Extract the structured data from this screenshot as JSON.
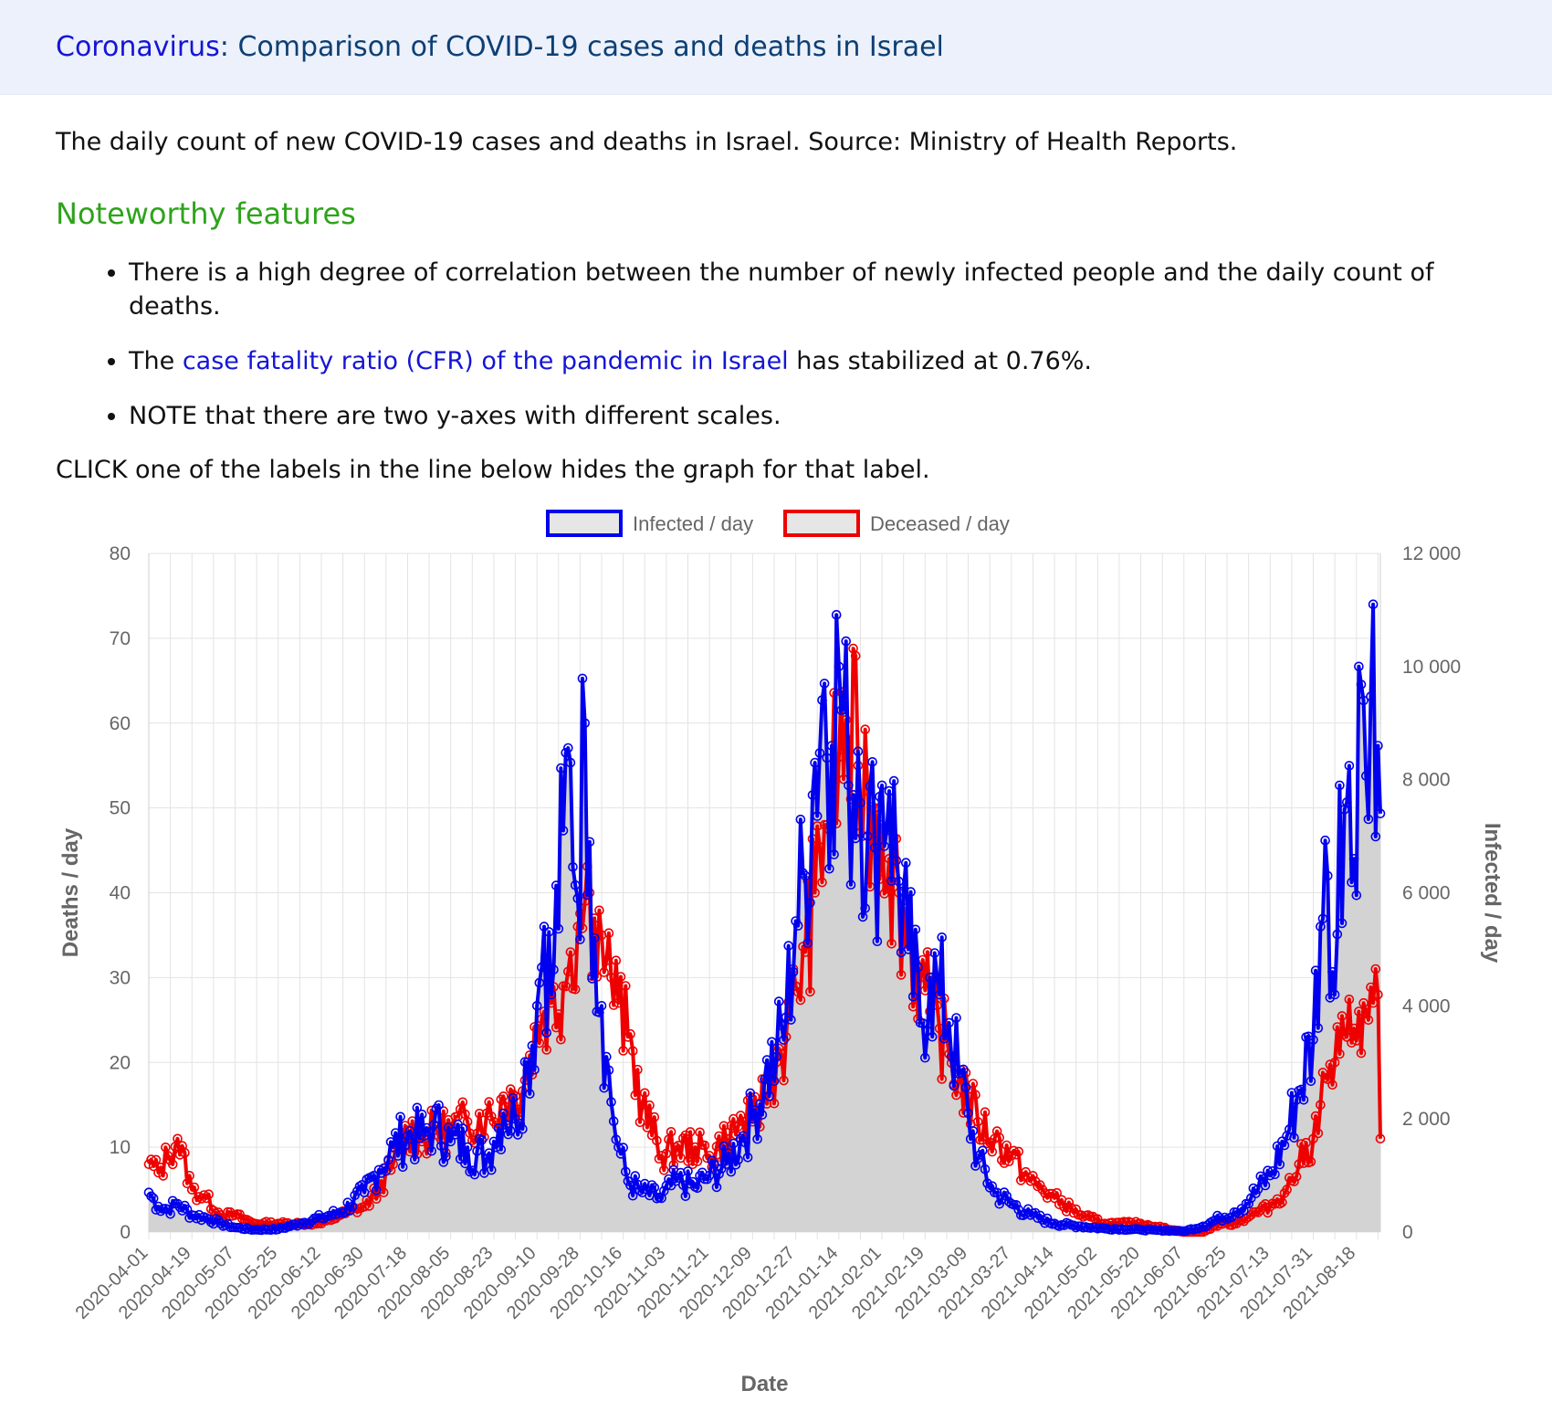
{
  "header": {
    "title_link": "Coronavirus",
    "title_rest": ": Comparison of COVID-19 cases and deaths in Israel"
  },
  "intro": "The daily count of new COVID-19 cases and deaths in Israel. Source: Ministry of Health Reports.",
  "features_heading": "Noteworthy features",
  "features": {
    "item1": "There is a high degree of correlation between the number of newly infected people and the daily count of deaths.",
    "item2_prefix": "The ",
    "item2_link": "case fatality ratio (CFR) of the pandemic in Israel",
    "item2_suffix": " has stabilized at 0.76%.",
    "item3": "NOTE that there are two y-axes with different scales."
  },
  "instruction": "CLICK one of the labels in the line below hides the graph for that label.",
  "colors": {
    "infected": "#0000ee",
    "deceased": "#ee0000",
    "fill": "#d3d3d3",
    "grid": "#e3e3e3",
    "axis_text": "#666666"
  },
  "chart_data": {
    "type": "line",
    "title": "",
    "xlabel": "Date",
    "ylabel_left": "Deaths / day",
    "ylabel_right": "Infected / day",
    "ylim_left": [
      0,
      80
    ],
    "ylim_right": [
      0,
      12000
    ],
    "left_ticks": [
      0,
      10,
      20,
      30,
      40,
      50,
      60,
      70,
      80
    ],
    "right_ticks": [
      "0",
      "2 000",
      "4 000",
      "6 000",
      "8 000",
      "10 000",
      "12 000"
    ],
    "x_start": "2020-04-01",
    "x_end": "2021-08-28",
    "x_tick_labels": [
      "2020-04-01",
      "2020-04-19",
      "2020-05-07",
      "2020-05-25",
      "2020-06-12",
      "2020-06-30",
      "2020-07-18",
      "2020-08-05",
      "2020-08-23",
      "2020-09-10",
      "2020-09-28",
      "2020-10-16",
      "2020-11-03",
      "2020-11-21",
      "2020-12-09",
      "2020-12-27",
      "2021-01-14",
      "2021-02-01",
      "2021-02-19",
      "2021-03-09",
      "2021-03-27",
      "2021-04-14",
      "2021-05-02",
      "2021-05-20",
      "2021-06-07",
      "2021-06-25",
      "2021-07-13",
      "2021-07-31",
      "2021-08-18"
    ],
    "legend_position": "top-center",
    "grid": true,
    "series": [
      {
        "name": "Infected / day",
        "axis": "right",
        "points": [
          [
            "2020-04-01",
            700
          ],
          [
            "2020-04-05",
            450
          ],
          [
            "2020-04-09",
            400
          ],
          [
            "2020-04-13",
            500
          ],
          [
            "2020-04-19",
            300
          ],
          [
            "2020-04-25",
            250
          ],
          [
            "2020-05-01",
            150
          ],
          [
            "2020-05-07",
            80
          ],
          [
            "2020-05-15",
            40
          ],
          [
            "2020-05-25",
            50
          ],
          [
            "2020-06-03",
            150
          ],
          [
            "2020-06-12",
            250
          ],
          [
            "2020-06-20",
            350
          ],
          [
            "2020-06-30",
            700
          ],
          [
            "2020-07-06",
            1100
          ],
          [
            "2020-07-12",
            1500
          ],
          [
            "2020-07-18",
            1700
          ],
          [
            "2020-07-25",
            1700
          ],
          [
            "2020-07-29",
            1900
          ],
          [
            "2020-08-05",
            1600
          ],
          [
            "2020-08-12",
            1500
          ],
          [
            "2020-08-20",
            1300
          ],
          [
            "2020-08-23",
            1600
          ],
          [
            "2020-08-27",
            2100
          ],
          [
            "2020-09-01",
            2000
          ],
          [
            "2020-09-06",
            3000
          ],
          [
            "2020-09-10",
            4000
          ],
          [
            "2020-09-13",
            5400
          ],
          [
            "2020-09-16",
            4200
          ],
          [
            "2020-09-21",
            7100
          ],
          [
            "2020-09-24",
            8300
          ],
          [
            "2020-09-27",
            5900
          ],
          [
            "2020-09-30",
            9000
          ],
          [
            "2020-10-02",
            6900
          ],
          [
            "2020-10-04",
            5200
          ],
          [
            "2020-10-07",
            4000
          ],
          [
            "2020-10-09",
            3100
          ],
          [
            "2020-10-11",
            2300
          ],
          [
            "2020-10-14",
            1500
          ],
          [
            "2020-10-18",
            900
          ],
          [
            "2020-10-24",
            700
          ],
          [
            "2020-11-01",
            600
          ],
          [
            "2020-11-07",
            900
          ],
          [
            "2020-11-15",
            800
          ],
          [
            "2020-11-21",
            1000
          ],
          [
            "2020-11-28",
            1200
          ],
          [
            "2020-12-05",
            1700
          ],
          [
            "2020-12-09",
            2000
          ],
          [
            "2020-12-14",
            2700
          ],
          [
            "2020-12-19",
            3100
          ],
          [
            "2020-12-23",
            3800
          ],
          [
            "2020-12-27",
            5500
          ],
          [
            "2020-12-31",
            6300
          ],
          [
            "2021-01-04",
            8300
          ],
          [
            "2021-01-08",
            9700
          ],
          [
            "2021-01-11",
            8600
          ],
          [
            "2021-01-14",
            10000
          ],
          [
            "2021-01-18",
            7900
          ],
          [
            "2021-01-22",
            8500
          ],
          [
            "2021-01-26",
            7000
          ],
          [
            "2021-01-29",
            6800
          ],
          [
            "2021-02-01",
            7900
          ],
          [
            "2021-02-04",
            7800
          ],
          [
            "2021-02-08",
            6200
          ],
          [
            "2021-02-12",
            5000
          ],
          [
            "2021-02-17",
            3700
          ],
          [
            "2021-02-21",
            4500
          ],
          [
            "2021-02-25",
            4200
          ],
          [
            "2021-03-01",
            3700
          ],
          [
            "2021-03-05",
            2800
          ],
          [
            "2021-03-09",
            2100
          ],
          [
            "2021-03-13",
            1300
          ],
          [
            "2021-03-20",
            700
          ],
          [
            "2021-03-27",
            500
          ],
          [
            "2021-04-04",
            300
          ],
          [
            "2021-04-14",
            150
          ],
          [
            "2021-04-25",
            100
          ],
          [
            "2021-05-05",
            60
          ],
          [
            "2021-05-20",
            40
          ],
          [
            "2021-06-07",
            15
          ],
          [
            "2021-06-15",
            100
          ],
          [
            "2021-06-22",
            250
          ],
          [
            "2021-06-28",
            350
          ],
          [
            "2021-07-05",
            600
          ],
          [
            "2021-07-13",
            1000
          ],
          [
            "2021-07-20",
            1700
          ],
          [
            "2021-07-25",
            2500
          ],
          [
            "2021-07-31",
            3400
          ],
          [
            "2021-08-03",
            5400
          ],
          [
            "2021-08-06",
            6300
          ],
          [
            "2021-08-09",
            4200
          ],
          [
            "2021-08-11",
            7900
          ],
          [
            "2021-08-14",
            7600
          ],
          [
            "2021-08-17",
            6600
          ],
          [
            "2021-08-19",
            10000
          ],
          [
            "2021-08-21",
            9400
          ],
          [
            "2021-08-23",
            7300
          ],
          [
            "2021-08-25",
            11100
          ],
          [
            "2021-08-27",
            8600
          ],
          [
            "2021-08-28",
            7400
          ]
        ]
      },
      {
        "name": "Deceased / day",
        "axis": "left",
        "points": [
          [
            "2020-04-01",
            8
          ],
          [
            "2020-04-05",
            7
          ],
          [
            "2020-04-09",
            9
          ],
          [
            "2020-04-13",
            11
          ],
          [
            "2020-04-19",
            5
          ],
          [
            "2020-04-25",
            4
          ],
          [
            "2020-05-01",
            2
          ],
          [
            "2020-05-07",
            2
          ],
          [
            "2020-05-15",
            1
          ],
          [
            "2020-05-25",
            1
          ],
          [
            "2020-06-03",
            1
          ],
          [
            "2020-06-12",
            1
          ],
          [
            "2020-06-20",
            2
          ],
          [
            "2020-06-30",
            3
          ],
          [
            "2020-07-06",
            5
          ],
          [
            "2020-07-12",
            8
          ],
          [
            "2020-07-18",
            12
          ],
          [
            "2020-07-25",
            11
          ],
          [
            "2020-07-29",
            12
          ],
          [
            "2020-08-05",
            12
          ],
          [
            "2020-08-12",
            13
          ],
          [
            "2020-08-20",
            14
          ],
          [
            "2020-08-23",
            13
          ],
          [
            "2020-08-27",
            16
          ],
          [
            "2020-09-01",
            16
          ],
          [
            "2020-09-06",
            19
          ],
          [
            "2020-09-10",
            24
          ],
          [
            "2020-09-13",
            26
          ],
          [
            "2020-09-16",
            27
          ],
          [
            "2020-09-21",
            29
          ],
          [
            "2020-09-24",
            33
          ],
          [
            "2020-09-27",
            36
          ],
          [
            "2020-09-30",
            39
          ],
          [
            "2020-10-02",
            40
          ],
          [
            "2020-10-04",
            37
          ],
          [
            "2020-10-07",
            35
          ],
          [
            "2020-10-09",
            32
          ],
          [
            "2020-10-11",
            30
          ],
          [
            "2020-10-14",
            27
          ],
          [
            "2020-10-18",
            23
          ],
          [
            "2020-10-24",
            15
          ],
          [
            "2020-11-01",
            9
          ],
          [
            "2020-11-07",
            10
          ],
          [
            "2020-11-15",
            10
          ],
          [
            "2020-11-21",
            9
          ],
          [
            "2020-11-28",
            11
          ],
          [
            "2020-12-05",
            13
          ],
          [
            "2020-12-09",
            13
          ],
          [
            "2020-12-14",
            16
          ],
          [
            "2020-12-19",
            20
          ],
          [
            "2020-12-23",
            23
          ],
          [
            "2020-12-27",
            29
          ],
          [
            "2020-12-31",
            33
          ],
          [
            "2021-01-04",
            40
          ],
          [
            "2021-01-08",
            48
          ],
          [
            "2021-01-11",
            52
          ],
          [
            "2021-01-14",
            56
          ],
          [
            "2021-01-18",
            58
          ],
          [
            "2021-01-22",
            55
          ],
          [
            "2021-01-26",
            52
          ],
          [
            "2021-01-29",
            50
          ],
          [
            "2021-02-01",
            48
          ],
          [
            "2021-02-04",
            44
          ],
          [
            "2021-02-08",
            40
          ],
          [
            "2021-02-12",
            34
          ],
          [
            "2021-02-17",
            30
          ],
          [
            "2021-02-21",
            26
          ],
          [
            "2021-02-25",
            24
          ],
          [
            "2021-03-01",
            21
          ],
          [
            "2021-03-05",
            18
          ],
          [
            "2021-03-09",
            16
          ],
          [
            "2021-03-13",
            13
          ],
          [
            "2021-03-20",
            11
          ],
          [
            "2021-03-27",
            9
          ],
          [
            "2021-04-04",
            6
          ],
          [
            "2021-04-14",
            4
          ],
          [
            "2021-04-25",
            2
          ],
          [
            "2021-05-05",
            1
          ],
          [
            "2021-05-20",
            1
          ],
          [
            "2021-06-07",
            0
          ],
          [
            "2021-06-15",
            0
          ],
          [
            "2021-06-22",
            1
          ],
          [
            "2021-06-28",
            1
          ],
          [
            "2021-07-05",
            2
          ],
          [
            "2021-07-13",
            3
          ],
          [
            "2021-07-20",
            5
          ],
          [
            "2021-07-25",
            8
          ],
          [
            "2021-07-31",
            11
          ],
          [
            "2021-08-03",
            15
          ],
          [
            "2021-08-06",
            18
          ],
          [
            "2021-08-09",
            20
          ],
          [
            "2021-08-11",
            21
          ],
          [
            "2021-08-14",
            23
          ],
          [
            "2021-08-17",
            24
          ],
          [
            "2021-08-19",
            26
          ],
          [
            "2021-08-21",
            27
          ],
          [
            "2021-08-23",
            25
          ],
          [
            "2021-08-25",
            27
          ],
          [
            "2021-08-27",
            28
          ],
          [
            "2021-08-28",
            11
          ]
        ]
      }
    ]
  }
}
